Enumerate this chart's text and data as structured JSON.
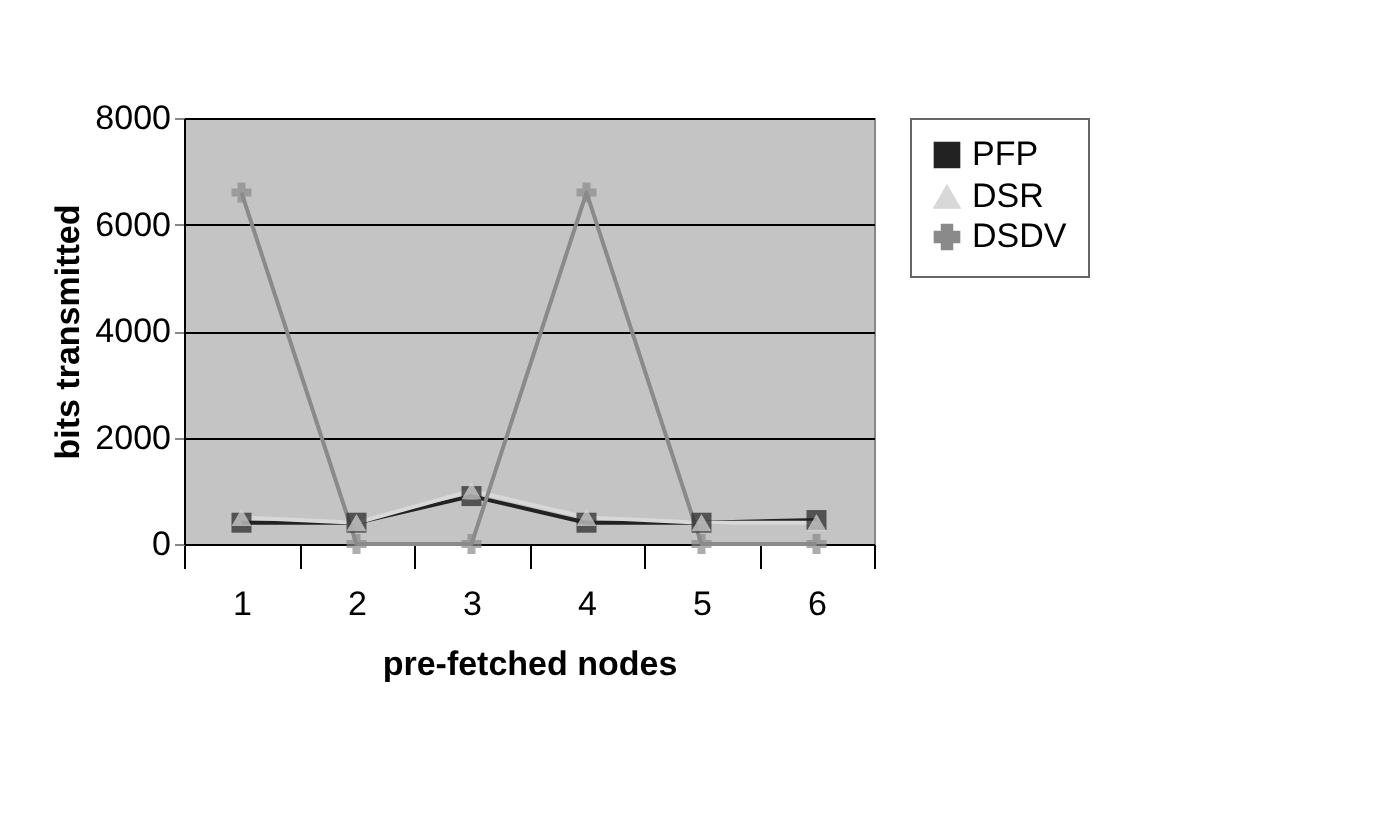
{
  "chart_data": {
    "type": "line",
    "xlabel": "pre-fetched nodes",
    "ylabel": "bits transmitted",
    "categories": [
      "1",
      "2",
      "3",
      "4",
      "5",
      "6"
    ],
    "series": [
      {
        "name": "PFP",
        "color": "#222222",
        "marker": "square",
        "values": [
          400,
          400,
          900,
          400,
          400,
          450
        ]
      },
      {
        "name": "DSR",
        "color": "#d8d8d8",
        "marker": "triangle",
        "values": [
          500,
          400,
          1000,
          500,
          400,
          400
        ]
      },
      {
        "name": "DSDV",
        "color": "#8a8a8a",
        "marker": "cross",
        "values": [
          6600,
          0,
          0,
          6600,
          0,
          0
        ]
      }
    ],
    "ylim": [
      0,
      8000
    ],
    "yticks": [
      0,
      2000,
      4000,
      6000,
      8000
    ],
    "grid": "y",
    "legend": "right"
  }
}
